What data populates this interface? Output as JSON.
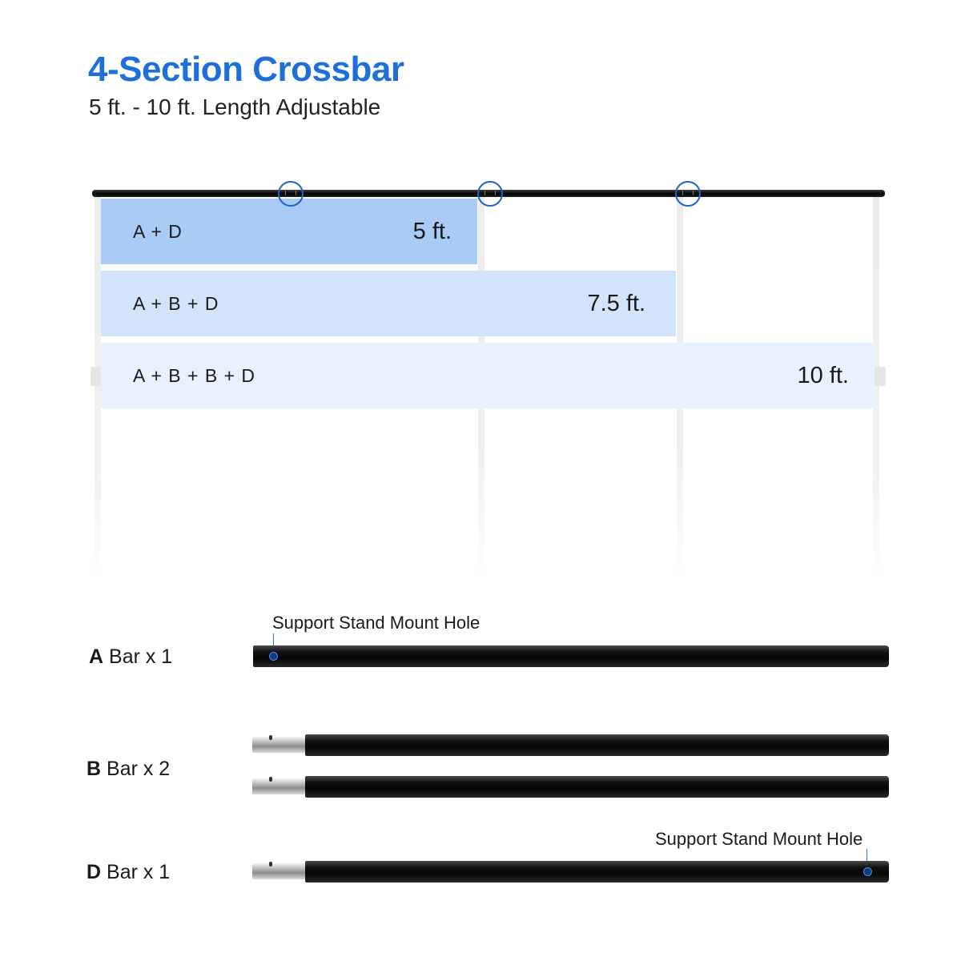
{
  "header": {
    "title": "4-Section Crossbar",
    "subtitle": "5 ft. - 10 ft. Length Adjustable"
  },
  "colors": {
    "title": "#1e6fd9",
    "band_1": "#a9cbf5",
    "band_2": "#d2e4fa",
    "band_3": "#e8f1fd",
    "joint_circle": "#1e63c8"
  },
  "configurations": [
    {
      "combo": "A + D",
      "length": "5 ft."
    },
    {
      "combo": "A + B + D",
      "length": "7.5 ft."
    },
    {
      "combo": "A + B + B + D",
      "length": "10 ft."
    }
  ],
  "parts": [
    {
      "letter": "A",
      "label": "Bar x 1",
      "callout": "Support Stand Mount Hole"
    },
    {
      "letter": "B",
      "label": "Bar x 2"
    },
    {
      "letter": "D",
      "label": "Bar x 1",
      "callout": "Support Stand Mount Hole"
    }
  ]
}
